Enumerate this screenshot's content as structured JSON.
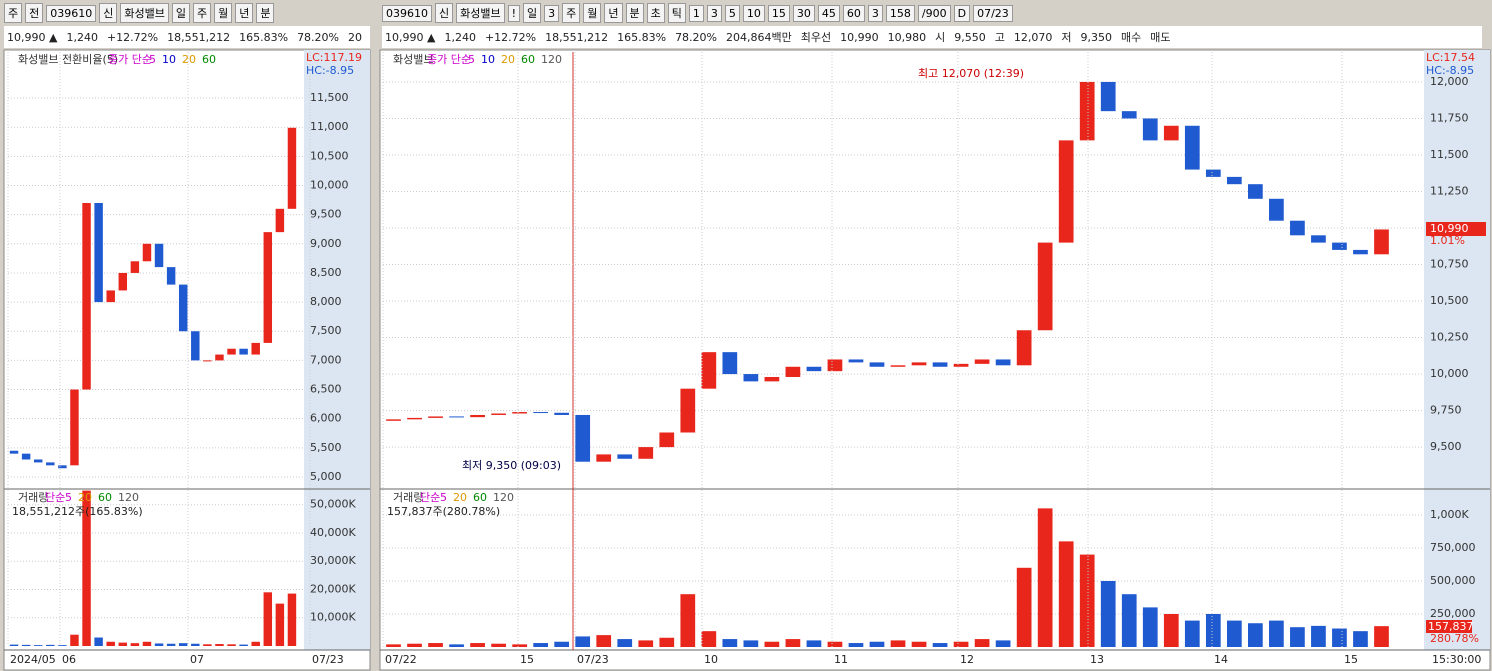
{
  "left": {
    "toolbar1": [
      "주",
      "전",
      "039610",
      "신",
      "화성밸브",
      "일",
      "주",
      "월",
      "년",
      "분"
    ],
    "toolbar2": [
      "10,990 ▲",
      "1,240",
      "+12.72%",
      "18,551,212",
      "165.83%",
      "78.20%",
      "20"
    ],
    "legend": [
      "화성밸브 전환비율(5)",
      "종가 단순",
      "5",
      "10",
      "20",
      "60"
    ],
    "lc": "LC:117.19",
    "hc": "HC:-8.95",
    "vol_legend": [
      "거래량",
      "단순",
      "5",
      "20",
      "60",
      "120"
    ],
    "vol_note": "18,551,212주(165.83%)",
    "x_labels": [
      "2024/05",
      "06",
      "07",
      "07/23"
    ],
    "chart_data": {
      "type": "candlestick",
      "open": [
        5450,
        5400,
        5300,
        5250,
        5200,
        5200,
        6500,
        9700,
        8000,
        8200,
        8500,
        8700,
        9000,
        8600,
        8300,
        7500,
        7000,
        7000,
        7100,
        7200,
        7100,
        7300,
        9200,
        9600
      ],
      "close": [
        5400,
        5300,
        5250,
        5200,
        5150,
        6500,
        9700,
        8000,
        8200,
        8500,
        8700,
        9000,
        8600,
        8300,
        7500,
        7000,
        7000,
        7100,
        7200,
        7100,
        7300,
        9200,
        9600,
        10990
      ],
      "volume": [
        500,
        400,
        300,
        400,
        300,
        4000,
        55000,
        3000,
        1500,
        1200,
        1000,
        1500,
        900,
        800,
        1000,
        800,
        600,
        700,
        600,
        500,
        1500,
        19000,
        15000,
        18551
      ],
      "ylim": [
        4811,
        12290
      ],
      "yticks": [
        {
          "value": 5000,
          "label": "5,000"
        },
        {
          "value": 5500,
          "label": "5,500"
        },
        {
          "value": 6000,
          "label": "6,000"
        },
        {
          "value": 6500,
          "label": "6,500"
        },
        {
          "value": 7000,
          "label": "7,000"
        },
        {
          "value": 7500,
          "label": "7,500"
        },
        {
          "value": 8000,
          "label": "8,000"
        },
        {
          "value": 8500,
          "label": "8,500"
        },
        {
          "value": 9000,
          "label": "9,000"
        },
        {
          "value": 9500,
          "label": "9,500"
        },
        {
          "value": 10000,
          "label": "10,000"
        },
        {
          "value": 10500,
          "label": "10,500"
        },
        {
          "value": 11000,
          "label": "11,000"
        },
        {
          "value": 11500,
          "label": "11,500"
        }
      ],
      "vlim": [
        0,
        54500
      ],
      "vticks": [
        {
          "value": 10000,
          "label": "10,000K"
        },
        {
          "value": 20000,
          "label": "20,000K"
        },
        {
          "value": 30000,
          "label": "30,000K"
        },
        {
          "value": 40000,
          "label": "40,000K"
        },
        {
          "value": 50000,
          "label": "50,000K"
        }
      ]
    }
  },
  "right": {
    "toolbar1": [
      "039610",
      "신",
      "화성밸브",
      "!",
      "일",
      "3",
      "주",
      "월",
      "년",
      "분",
      "초",
      "틱",
      "1",
      "3",
      "5",
      "10",
      "15",
      "30",
      "45",
      "60",
      "3",
      "158",
      "/900",
      "D",
      "07/23"
    ],
    "toolbar2": [
      "10,990 ▲",
      "1,240",
      "+12.72%",
      "18,551,212",
      "165.83%",
      "78.20%",
      "204,864백만",
      "최우선",
      "10,990",
      "10,980",
      "시",
      "9,550",
      "고",
      "12,070",
      "저",
      "9,350",
      "매수",
      "매도"
    ],
    "legend": [
      "화성밸브",
      "종가 단순",
      "5",
      "10",
      "20",
      "60",
      "120"
    ],
    "lc": "LC:17.54",
    "hc": "HC:-8.95",
    "high_note": "최고 12,070 (12:39)",
    "low_note": "최저 9,350 (09:03)",
    "price_tag": "10,990",
    "pct_tag": "1.01%",
    "vol_legend": [
      "거래량",
      "단순",
      "5",
      "20",
      "60",
      "120"
    ],
    "vol_note": "157,837주(280.78%)",
    "vol_tag": "157,837",
    "vol_pct": "280.78%",
    "x_labels": [
      "07/22",
      "15",
      "07/23",
      "10",
      "11",
      "12",
      "13",
      "14",
      "15"
    ],
    "time": "15:30:00",
    "chart_data": {
      "type": "candlestick",
      "open": [
        9680,
        9690,
        9700,
        9710,
        9705,
        9720,
        9730,
        9740,
        9735,
        9720,
        9400,
        9450,
        9420,
        9500,
        9600,
        9900,
        10150,
        10000,
        9950,
        9980,
        10050,
        10020,
        10100,
        10080,
        10050,
        10060,
        10080,
        10050,
        10070,
        10100,
        10060,
        10300,
        10900,
        11600,
        12000,
        11800,
        11750,
        11600,
        11700,
        11400,
        11350,
        11300,
        11200,
        11050,
        10950,
        10900,
        10850,
        10820
      ],
      "close": [
        9690,
        9700,
        9710,
        9705,
        9720,
        9730,
        9740,
        9735,
        9720,
        9400,
        9450,
        9420,
        9500,
        9600,
        9900,
        10150,
        10000,
        9950,
        9980,
        10050,
        10020,
        10100,
        10080,
        10050,
        10060,
        10080,
        10050,
        10070,
        10100,
        10060,
        10300,
        10900,
        11600,
        12000,
        11800,
        11750,
        11600,
        11700,
        11400,
        11350,
        11300,
        11200,
        11050,
        10950,
        10900,
        10850,
        10820,
        10990
      ],
      "volume": [
        20000,
        25000,
        30000,
        20000,
        30000,
        25000,
        20000,
        30000,
        40000,
        80000,
        90000,
        60000,
        50000,
        70000,
        400000,
        120000,
        60000,
        50000,
        40000,
        60000,
        50000,
        40000,
        30000,
        40000,
        50000,
        40000,
        30000,
        40000,
        60000,
        50000,
        600000,
        1050000,
        800000,
        700000,
        500000,
        400000,
        300000,
        250000,
        200000,
        250000,
        200000,
        180000,
        200000,
        150000,
        160000,
        140000,
        120000,
        157837
      ],
      "ylim": [
        9220,
        12205
      ],
      "yticks": [
        {
          "value": 9500,
          "label": "9,500"
        },
        {
          "value": 9750,
          "label": "9,750"
        },
        {
          "value": 10000,
          "label": "10,000"
        },
        {
          "value": 10250,
          "label": "10,250"
        },
        {
          "value": 10500,
          "label": "10,500"
        },
        {
          "value": 10750,
          "label": "10,750"
        },
        {
          "value": 11000,
          "label": "11,000"
        },
        {
          "value": 11250,
          "label": "11,250"
        },
        {
          "value": 11500,
          "label": "11,500"
        },
        {
          "value": 11750,
          "label": "11,750"
        },
        {
          "value": 12000,
          "label": "12,000"
        }
      ],
      "vlim": [
        0,
        1174000
      ],
      "vticks": [
        {
          "value": 250000,
          "label": "250,000"
        },
        {
          "value": 500000,
          "label": "500,000"
        },
        {
          "value": 750000,
          "label": "750,000"
        },
        {
          "value": 1000000,
          "label": "1,000K"
        }
      ]
    }
  }
}
